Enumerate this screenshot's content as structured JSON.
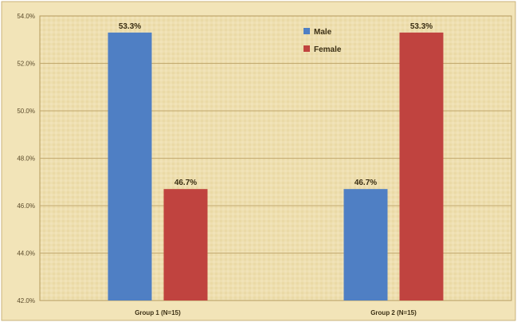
{
  "chart_data": {
    "type": "bar",
    "title": "",
    "xlabel": "",
    "ylabel": "",
    "categories": [
      "Group 1 (N=15)",
      "Group 2 (N=15)"
    ],
    "series": [
      {
        "name": "Male",
        "values": [
          53.3,
          46.7
        ],
        "color": "#4f7fc4"
      },
      {
        "name": "Female",
        "values": [
          46.7,
          53.3
        ],
        "color": "#c0433f"
      }
    ],
    "data_labels": [
      [
        "53.3%",
        "46.7%"
      ],
      [
        "46.7%",
        "53.3%"
      ]
    ],
    "ylim": [
      42,
      54
    ],
    "yticks": [
      "42.0%",
      "44.0%",
      "46.0%",
      "48.0%",
      "50.0%",
      "52.0%",
      "54.0%"
    ],
    "grid": true,
    "legend_position": "top-center"
  }
}
